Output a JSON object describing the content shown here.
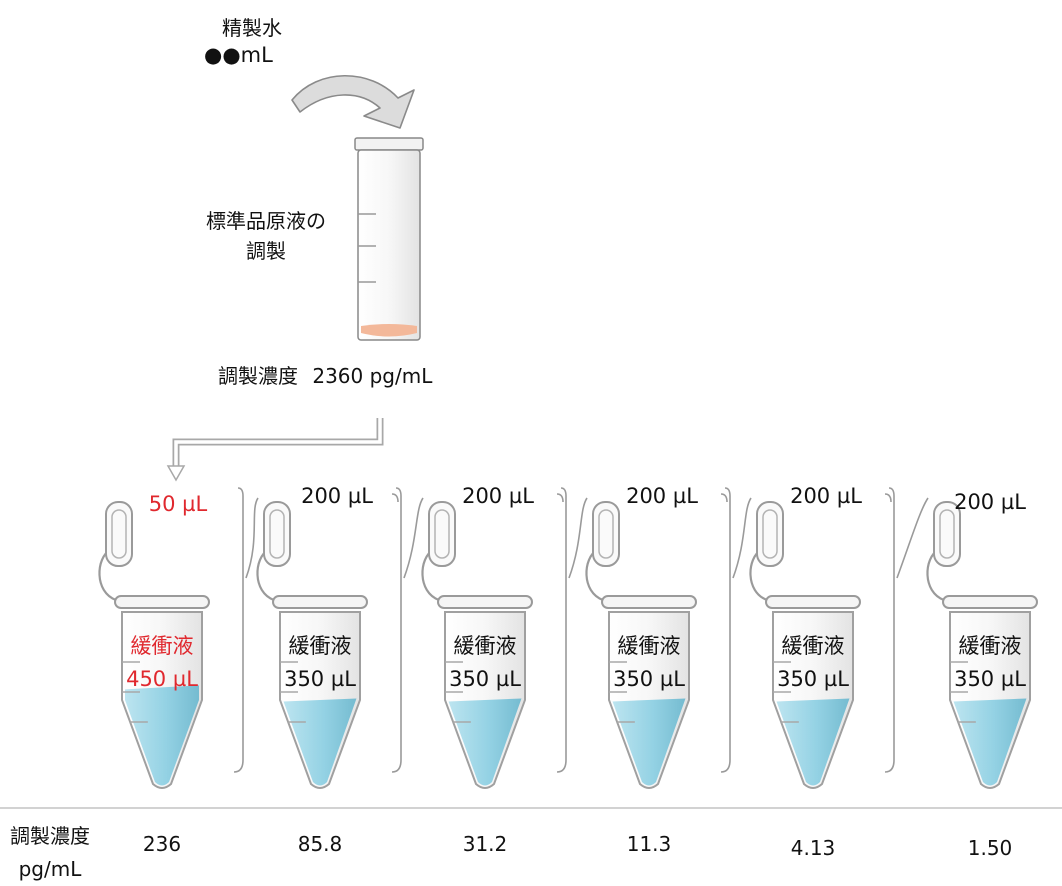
{
  "water": {
    "label": "精製水",
    "volume": "●●mL"
  },
  "stock": {
    "label_line1": "標準品原液の",
    "label_line2": "調製",
    "concentration_label": "調製濃度",
    "concentration_value": "2360 pg/mL"
  },
  "tubes": [
    {
      "transfer": "50 µL",
      "buffer_label": "緩衝液",
      "buffer_volume": "450 µL",
      "concentration": "236",
      "highlight": true,
      "fill": 0.55
    },
    {
      "transfer": "200 µL",
      "buffer_label": "緩衝液",
      "buffer_volume": "350 µL",
      "concentration": "85.8",
      "highlight": false,
      "fill": 0.48
    },
    {
      "transfer": "200 µL",
      "buffer_label": "緩衝液",
      "buffer_volume": "350 µL",
      "concentration": "31.2",
      "highlight": false,
      "fill": 0.48
    },
    {
      "transfer": "200 µL",
      "buffer_label": "緩衝液",
      "buffer_volume": "350 µL",
      "concentration": "11.3",
      "highlight": false,
      "fill": 0.48
    },
    {
      "transfer": "200 µL",
      "buffer_label": "緩衝液",
      "buffer_volume": "350 µL",
      "concentration": "4.13",
      "highlight": false,
      "fill": 0.48
    },
    {
      "transfer": "200 µL",
      "buffer_label": "緩衝液",
      "buffer_volume": "350 µL",
      "concentration": "1.50",
      "highlight": false,
      "fill": 0.48
    }
  ],
  "table": {
    "header_line1": "調製濃度",
    "header_line2": "pg/mL"
  },
  "colors": {
    "highlight": "#e0282e",
    "liquid": "#8fd0e3",
    "stock_liquid": "#f3b89a"
  }
}
